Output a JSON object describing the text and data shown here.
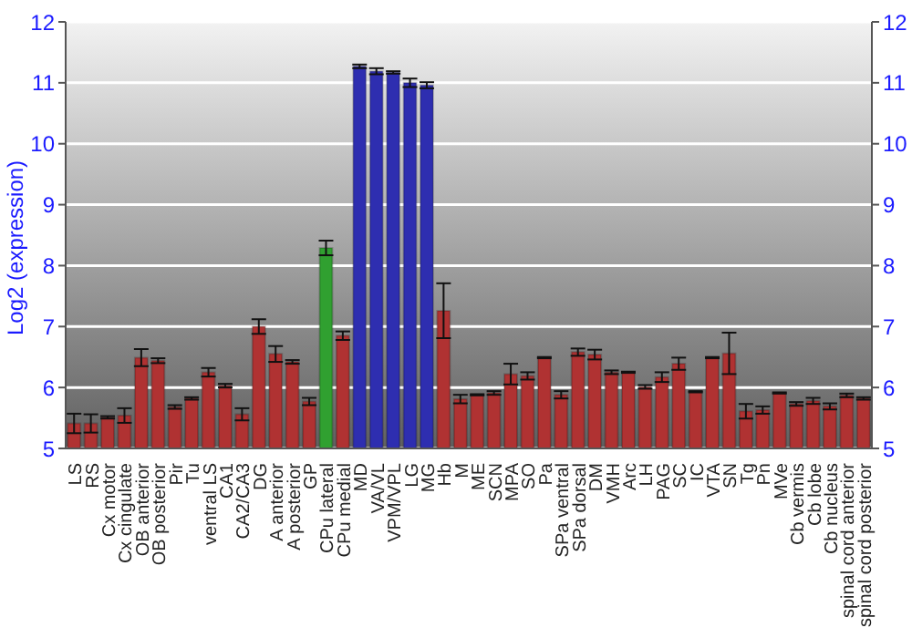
{
  "chart_data": {
    "type": "bar",
    "ylabel": "Log2 (expression)",
    "categories": [
      "LS",
      "RS",
      "Cx motor",
      "Cx cingulate",
      "OB anterior",
      "OB posterior",
      "Pir",
      "Tu",
      "ventral LS",
      "CA1",
      "CA2/CA3",
      "DG",
      "A anterior",
      "A posterior",
      "GP",
      "CPu lateral",
      "CPu medial",
      "MD",
      "VA/VL",
      "VPM/VPL",
      "LG",
      "MG",
      "Hb",
      "M",
      "ME",
      "SCN",
      "MPA",
      "SO",
      "Pa",
      "SPa ventral",
      "SPa dorsal",
      "DM",
      "VMH",
      "Arc",
      "LH",
      "PAG",
      "SC",
      "IC",
      "VTA",
      "SN",
      "Tg",
      "Pn",
      "MVe",
      "Cb vermis",
      "Cb lobe",
      "Cb nucleus",
      "spinal cord anterior",
      "spinal cord posterior"
    ],
    "values": [
      5.41,
      5.41,
      5.51,
      5.54,
      6.49,
      6.44,
      5.68,
      5.82,
      6.25,
      6.03,
      5.56,
      7.0,
      6.55,
      6.42,
      5.77,
      8.29,
      6.85,
      11.27,
      11.19,
      11.17,
      11.0,
      10.96,
      7.26,
      5.81,
      5.88,
      5.91,
      6.22,
      6.19,
      6.49,
      5.88,
      6.58,
      6.54,
      6.25,
      6.25,
      6.01,
      6.17,
      6.39,
      5.93,
      6.49,
      6.56,
      5.61,
      5.63,
      5.91,
      5.73,
      5.78,
      5.69,
      5.87,
      5.82
    ],
    "errors": [
      0.16,
      0.15,
      0.02,
      0.12,
      0.14,
      0.04,
      0.03,
      0.02,
      0.07,
      0.03,
      0.1,
      0.12,
      0.13,
      0.03,
      0.06,
      0.12,
      0.07,
      0.03,
      0.05,
      0.02,
      0.07,
      0.05,
      0.45,
      0.07,
      0.01,
      0.03,
      0.17,
      0.06,
      0.01,
      0.06,
      0.06,
      0.08,
      0.03,
      0.01,
      0.03,
      0.08,
      0.1,
      0.01,
      0.01,
      0.34,
      0.12,
      0.06,
      0.01,
      0.03,
      0.05,
      0.05,
      0.03,
      0.02
    ],
    "colors": [
      "#b03232",
      "#b03232",
      "#b03232",
      "#b03232",
      "#b03232",
      "#b03232",
      "#b03232",
      "#b03232",
      "#b03232",
      "#b03232",
      "#b03232",
      "#b03232",
      "#b03232",
      "#b03232",
      "#b03232",
      "#30a030",
      "#b03232",
      "#2e2eb0",
      "#2e2eb0",
      "#2e2eb0",
      "#2e2eb0",
      "#2e2eb0",
      "#b03232",
      "#b03232",
      "#b03232",
      "#b03232",
      "#b03232",
      "#b03232",
      "#b03232",
      "#b03232",
      "#b03232",
      "#b03232",
      "#b03232",
      "#b03232",
      "#b03232",
      "#b03232",
      "#b03232",
      "#b03232",
      "#b03232",
      "#b03232",
      "#b03232",
      "#b03232",
      "#b03232",
      "#b03232",
      "#b03232",
      "#b03232",
      "#b03232",
      "#b03232"
    ],
    "ylim": [
      5,
      12
    ],
    "yticks": [
      5,
      6,
      7,
      8,
      9,
      10,
      11,
      12
    ],
    "y2lim": [
      5,
      12
    ],
    "y2ticks": [
      5,
      6,
      7,
      8,
      9,
      10,
      11,
      12
    ],
    "grid": "y"
  }
}
